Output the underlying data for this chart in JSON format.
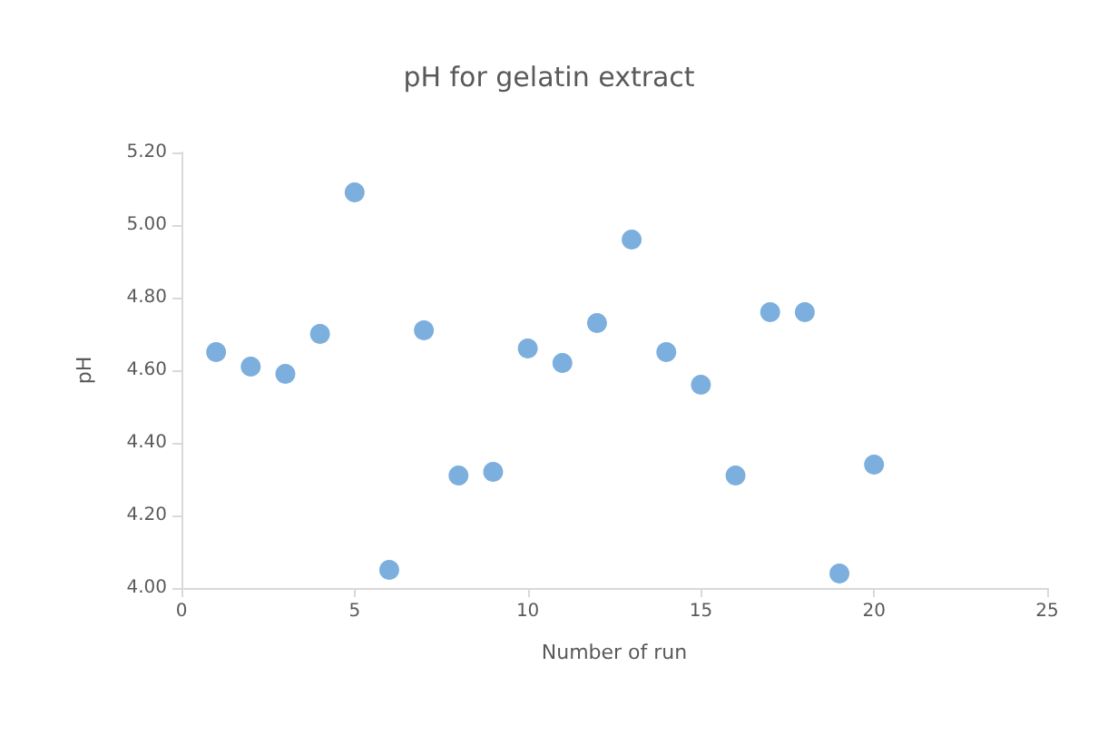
{
  "chart_data": {
    "type": "scatter",
    "title": "pH for gelatin extract",
    "xlabel": "Number of run",
    "ylabel": "pH",
    "x": [
      1,
      2,
      3,
      4,
      5,
      6,
      7,
      8,
      9,
      10,
      11,
      12,
      13,
      14,
      15,
      16,
      17,
      18,
      19,
      20
    ],
    "series": [
      {
        "color": "#5b9bd5",
        "values": [
          4.65,
          4.61,
          4.59,
          4.7,
          5.09,
          4.05,
          4.71,
          4.31,
          4.32,
          4.66,
          4.62,
          4.73,
          4.96,
          4.65,
          4.56,
          4.31,
          4.76,
          4.76,
          4.04,
          4.34
        ]
      }
    ],
    "xlim": [
      0,
      25
    ],
    "xticks": [
      0,
      5,
      10,
      15,
      20,
      25
    ],
    "ylim": [
      4.0,
      5.2
    ],
    "yticks": [
      {
        "value": 4.0,
        "label": "4.00"
      },
      {
        "value": 4.2,
        "label": "4.20"
      },
      {
        "value": 4.4,
        "label": "4.40"
      },
      {
        "value": 4.6,
        "label": "4.60"
      },
      {
        "value": 4.8,
        "label": "4.80"
      },
      {
        "value": 5.0,
        "label": "5.00"
      },
      {
        "value": 5.2,
        "label": "5.20"
      }
    ],
    "grid": false,
    "marker": "circle"
  }
}
